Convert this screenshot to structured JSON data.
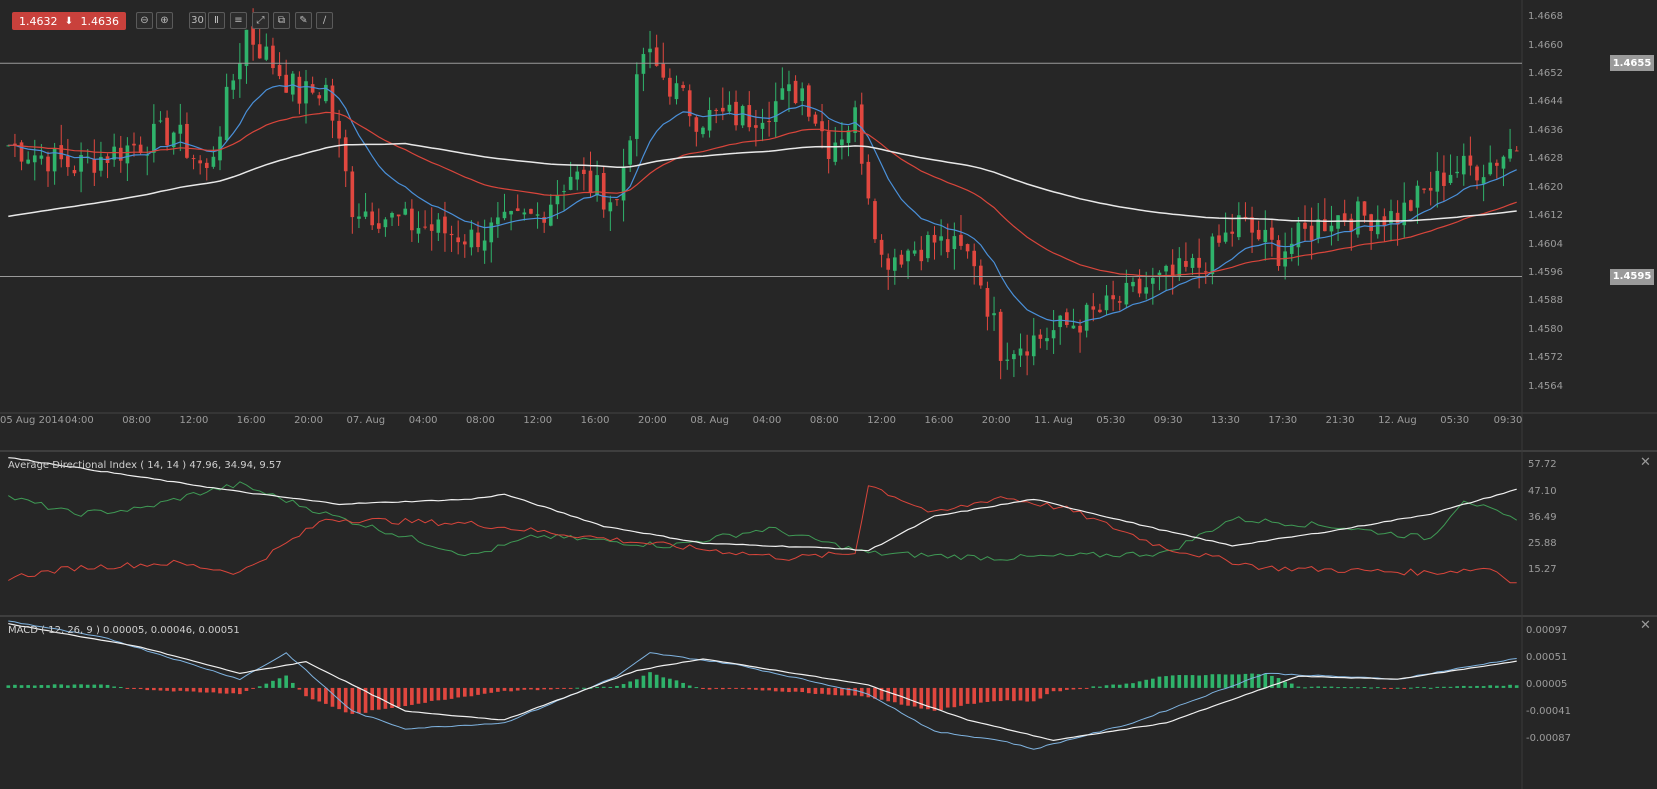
{
  "toolbar": {
    "bid": "1.4632",
    "ask": "1.4636",
    "tools": [
      {
        "name": "zoom-out-icon",
        "glyph": "⊖"
      },
      {
        "name": "zoom-in-icon",
        "glyph": "⊕"
      },
      {
        "name": "timeframe-button",
        "glyph": "30"
      },
      {
        "name": "chart-type-icon",
        "glyph": "Ⅱ"
      },
      {
        "name": "settings-icon",
        "glyph": "≡"
      },
      {
        "name": "expand-icon",
        "glyph": "⤢"
      },
      {
        "name": "layers-icon",
        "glyph": "⧉"
      },
      {
        "name": "draw-icon",
        "glyph": "✎"
      },
      {
        "name": "indicator-icon",
        "glyph": "∕"
      }
    ]
  },
  "colors": {
    "background": "#262626",
    "bull": "#2fb36b",
    "bear": "#e0473f",
    "ma_fast": "#4a90d9",
    "ma_mid": "#d9453b",
    "ma_slow": "#e8e8e8",
    "adx": "#f0f0f0",
    "plus_di": "#3f9a55",
    "minus_di": "#d9453b",
    "macd": "#7fb3e0",
    "signal": "#f0f0f0"
  },
  "price_axis": {
    "ticks": [
      "1.4668",
      "1.4660",
      "1.4652",
      "1.4644",
      "1.4636",
      "1.4628",
      "1.4620",
      "1.4612",
      "1.4604",
      "1.4596",
      "1.4588",
      "1.4580",
      "1.4572",
      "1.4564"
    ],
    "range": [
      1.4558,
      1.467
    ],
    "levels": [
      {
        "label": "1.4655",
        "value": 1.4655
      },
      {
        "label": "1.4595",
        "value": 1.4595
      }
    ]
  },
  "time_axis": {
    "labels": [
      "05 Aug 2014",
      "04:00",
      "08:00",
      "12:00",
      "16:00",
      "20:00",
      "07. Aug",
      "04:00",
      "08:00",
      "12:00",
      "16:00",
      "20:00",
      "08. Aug",
      "04:00",
      "08:00",
      "12:00",
      "16:00",
      "20:00",
      "11. Aug",
      "05:30",
      "09:30",
      "13:30",
      "17:30",
      "21:30",
      "12. Aug",
      "05:30",
      "09:30"
    ]
  },
  "adx_panel": {
    "title": "Average Directional Index ( 14, 14 ) 47.96, 34.94, 9.57",
    "ticks": [
      "57.72",
      "47.10",
      "36.49",
      "25.88",
      "15.27"
    ],
    "range": [
      9,
      62
    ]
  },
  "macd_panel": {
    "title": "MACD ( 12, 26, 9 ) 0.00005, 0.00046, 0.00051",
    "ticks": [
      "0.00097",
      "0.00051",
      "0.00005",
      "-0.00041",
      "-0.00087"
    ],
    "range": [
      -0.0011,
      0.0012
    ]
  },
  "chart_data": {
    "type": "candlestick",
    "symbol_quote": {
      "bid": 1.4632,
      "ask": 1.4636
    },
    "close_path_anchors": [
      [
        0,
        1.4632
      ],
      [
        10,
        1.4626
      ],
      [
        25,
        1.4636
      ],
      [
        30,
        1.4624
      ],
      [
        36,
        1.4664
      ],
      [
        44,
        1.4646
      ],
      [
        48,
        1.4648
      ],
      [
        52,
        1.4615
      ],
      [
        60,
        1.461
      ],
      [
        70,
        1.4606
      ],
      [
        80,
        1.4612
      ],
      [
        85,
        1.4624
      ],
      [
        92,
        1.4616
      ],
      [
        96,
        1.4658
      ],
      [
        104,
        1.464
      ],
      [
        112,
        1.464
      ],
      [
        120,
        1.4648
      ],
      [
        124,
        1.4632
      ],
      [
        128,
        1.464
      ],
      [
        132,
        1.46
      ],
      [
        140,
        1.4605
      ],
      [
        146,
        1.46
      ],
      [
        150,
        1.4575
      ],
      [
        156,
        1.4578
      ],
      [
        165,
        1.4585
      ],
      [
        172,
        1.4592
      ],
      [
        180,
        1.4598
      ],
      [
        186,
        1.461
      ],
      [
        192,
        1.4602
      ],
      [
        200,
        1.4612
      ],
      [
        210,
        1.4612
      ],
      [
        218,
        1.4625
      ],
      [
        223,
        1.4626
      ],
      [
        228,
        1.4632
      ]
    ],
    "adx_anchors": {
      "adx": [
        [
          0,
          61
        ],
        [
          20,
          53
        ],
        [
          35,
          47
        ],
        [
          50,
          42
        ],
        [
          70,
          44
        ],
        [
          75,
          46
        ],
        [
          90,
          33
        ],
        [
          105,
          26
        ],
        [
          125,
          24
        ],
        [
          130,
          23
        ],
        [
          140,
          37
        ],
        [
          155,
          44
        ],
        [
          175,
          31
        ],
        [
          185,
          25
        ],
        [
          200,
          31
        ],
        [
          215,
          38
        ],
        [
          228,
          47.96
        ]
      ],
      "plus_di": [
        [
          0,
          45
        ],
        [
          10,
          38
        ],
        [
          20,
          40
        ],
        [
          28,
          46
        ],
        [
          35,
          50
        ],
        [
          48,
          38
        ],
        [
          70,
          21
        ],
        [
          80,
          29
        ],
        [
          100,
          25
        ],
        [
          115,
          32
        ],
        [
          130,
          22
        ],
        [
          150,
          20
        ],
        [
          175,
          22
        ],
        [
          185,
          36
        ],
        [
          200,
          33
        ],
        [
          215,
          28
        ],
        [
          220,
          44
        ],
        [
          228,
          34.94
        ]
      ],
      "minus_di": [
        [
          0,
          12
        ],
        [
          10,
          16
        ],
        [
          25,
          18
        ],
        [
          35,
          14
        ],
        [
          48,
          36
        ],
        [
          70,
          34
        ],
        [
          80,
          31
        ],
        [
          100,
          25
        ],
        [
          118,
          20
        ],
        [
          128,
          22
        ],
        [
          130,
          50
        ],
        [
          140,
          38
        ],
        [
          150,
          45
        ],
        [
          160,
          40
        ],
        [
          175,
          24
        ],
        [
          190,
          16
        ],
        [
          215,
          14
        ],
        [
          224,
          16
        ],
        [
          228,
          9.57
        ]
      ]
    },
    "macd_anchors": {
      "macd": [
        [
          0,
          0.00115
        ],
        [
          15,
          0.00085
        ],
        [
          35,
          0.00015
        ],
        [
          42,
          0.0006
        ],
        [
          52,
          -0.0004
        ],
        [
          60,
          -0.0007
        ],
        [
          75,
          -0.0006
        ],
        [
          92,
          0.0002
        ],
        [
          97,
          0.0006
        ],
        [
          110,
          0.0004
        ],
        [
          130,
          -0.0001
        ],
        [
          140,
          -0.00075
        ],
        [
          150,
          -0.0009
        ],
        [
          155,
          -0.00105
        ],
        [
          170,
          -0.0006
        ],
        [
          190,
          0.00025
        ],
        [
          210,
          0.00015
        ],
        [
          228,
          0.00051
        ]
      ],
      "signal": [
        [
          0,
          0.0011
        ],
        [
          20,
          0.0007
        ],
        [
          35,
          0.00025
        ],
        [
          45,
          0.00045
        ],
        [
          60,
          -0.0004
        ],
        [
          75,
          -0.00055
        ],
        [
          95,
          0.0003
        ],
        [
          105,
          0.0005
        ],
        [
          130,
          5e-05
        ],
        [
          145,
          -0.00055
        ],
        [
          158,
          -0.0009
        ],
        [
          175,
          -0.0006
        ],
        [
          195,
          0.0002
        ],
        [
          210,
          0.00015
        ],
        [
          228,
          0.00046
        ]
      ]
    }
  }
}
